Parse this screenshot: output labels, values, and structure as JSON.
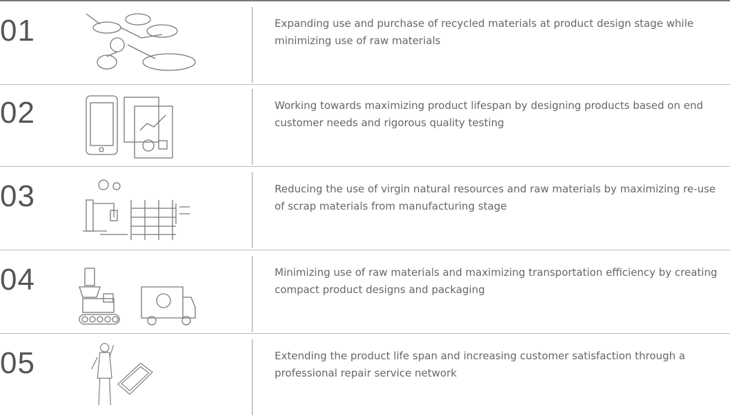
{
  "rows": [
    {
      "number": "01",
      "text": "Expanding use and purchase of recycled materials at product design stage while minimizing use of raw materials"
    },
    {
      "number": "02",
      "text": "Working towards maximizing product lifespan by designing products based on end customer needs and rigorous quality testing"
    },
    {
      "number": "03",
      "text": "Reducing the use of virgin natural resources and raw materials by maximizing re-use of scrap materials from manufacturing stage"
    },
    {
      "number": "04",
      "text": "Minimizing use of raw materials and maximizing transportation efficiency by creating compact product designs and packaging"
    },
    {
      "number": "05",
      "text": "Extending the product life span and increasing customer satisfaction through a professional repair service network"
    }
  ]
}
